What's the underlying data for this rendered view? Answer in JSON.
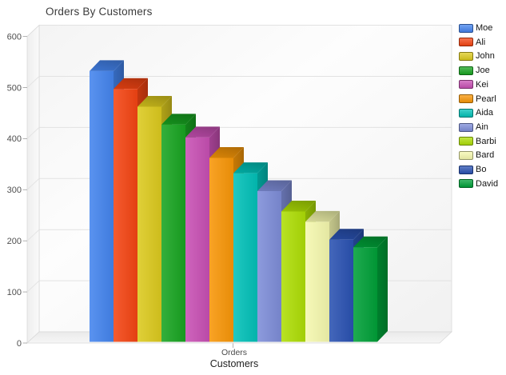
{
  "title": "Orders By Customers",
  "chart_data": {
    "type": "bar",
    "projection": "3d",
    "title": "Orders By Customers",
    "xlabel": "Customers",
    "category_label": "Orders",
    "categories": [
      "Orders"
    ],
    "ylabel": "",
    "ylim": [
      0,
      600
    ],
    "ytick_step": 100,
    "yticks": [
      0,
      100,
      200,
      300,
      400,
      500,
      600
    ],
    "grid": true,
    "legend_position": "right",
    "series": [
      {
        "name": "Moe",
        "value": 530,
        "color": "#4484ee"
      },
      {
        "name": "Ali",
        "value": 495,
        "color": "#f44513"
      },
      {
        "name": "John",
        "value": 460,
        "color": "#dcca1e"
      },
      {
        "name": "Joe",
        "value": 425,
        "color": "#18a421"
      },
      {
        "name": "Kei",
        "value": 400,
        "color": "#c850b4"
      },
      {
        "name": "Pearl",
        "value": 360,
        "color": "#f89708"
      },
      {
        "name": "Aida",
        "value": 330,
        "color": "#02c1b8"
      },
      {
        "name": "Ain",
        "value": 295,
        "color": "#7e8dd8"
      },
      {
        "name": "Barbi",
        "value": 255,
        "color": "#aede06"
      },
      {
        "name": "Bard",
        "value": 235,
        "color": "#f5f8ae"
      },
      {
        "name": "Bo",
        "value": 200,
        "color": "#2a52b2"
      },
      {
        "name": "David",
        "value": 185,
        "color": "#00a038"
      }
    ],
    "colors": {
      "gridline": "#e2e2e2",
      "wall_edge": "#d9d9d9",
      "tick": "#a8a8a8",
      "tick_label": "#4f4f4f",
      "title_text": "#3b3b3b"
    }
  }
}
